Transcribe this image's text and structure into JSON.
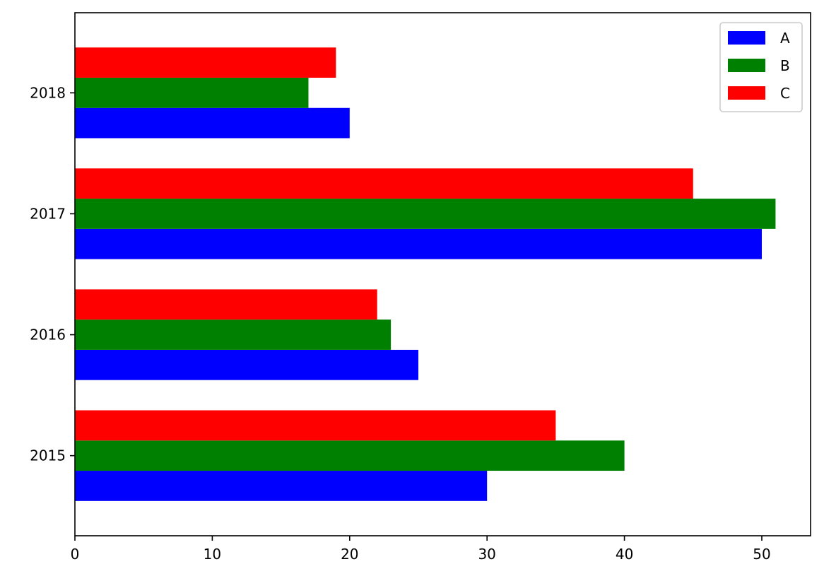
{
  "chart_data": {
    "type": "bar",
    "orientation": "horizontal",
    "title": "",
    "xlabel": "",
    "ylabel": "",
    "categories": [
      "2015",
      "2016",
      "2017",
      "2018"
    ],
    "series": [
      {
        "name": "A",
        "color": "#0000ff",
        "values": [
          30,
          25,
          50,
          20
        ]
      },
      {
        "name": "B",
        "color": "#008000",
        "values": [
          40,
          23,
          51,
          17
        ]
      },
      {
        "name": "C",
        "color": "#ff0000",
        "values": [
          35,
          22,
          45,
          19
        ]
      }
    ],
    "xlim": [
      0,
      53.55
    ],
    "xticks": [
      0,
      10,
      20,
      30,
      40,
      50
    ],
    "grid": false,
    "legend_position": "upper right"
  },
  "legend": {
    "items": [
      {
        "label": "A",
        "color": "#0000ff"
      },
      {
        "label": "B",
        "color": "#008000"
      },
      {
        "label": "C",
        "color": "#ff0000"
      }
    ]
  }
}
